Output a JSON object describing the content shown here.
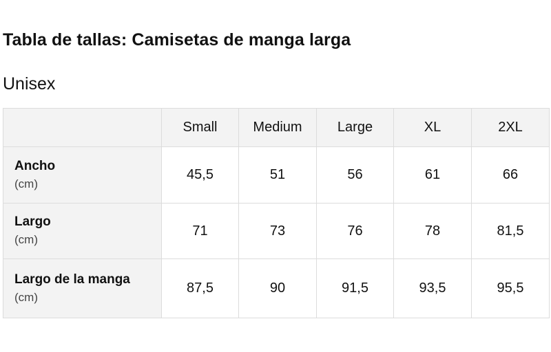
{
  "page": {
    "title": "Tabla de tallas: Camisetas de manga larga",
    "subtitle": "Unisex"
  },
  "table": {
    "columns": [
      "Small",
      "Medium",
      "Large",
      "XL",
      "2XL"
    ],
    "rows": [
      {
        "label": "Ancho",
        "unit": "(cm)",
        "values": [
          "45,5",
          "51",
          "56",
          "61",
          "66"
        ]
      },
      {
        "label": "Largo",
        "unit": "(cm)",
        "values": [
          "71",
          "73",
          "76",
          "78",
          "81,5"
        ]
      },
      {
        "label": "Largo de la manga",
        "unit": "(cm)",
        "values": [
          "87,5",
          "90",
          "91,5",
          "93,5",
          "95,5"
        ]
      }
    ]
  }
}
